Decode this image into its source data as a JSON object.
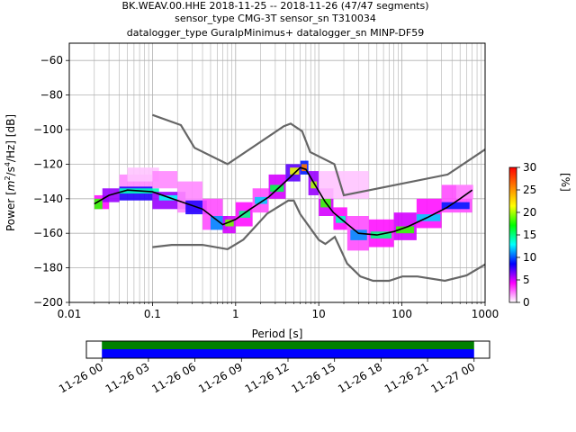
{
  "chart_data": {
    "type": "heatmap",
    "title_lines": [
      "BK.WEAV.00.HHE   2018-11-25 -- 2018-11-26  (47/47 segments)",
      "sensor_type CMG-3T sensor_sn T310034",
      "datalogger_type GuralpMinimus+ datalogger_sn MINP-DF59"
    ],
    "xlabel": "Period [s]",
    "ylabel_parts": {
      "a": "Power [",
      "m": "m",
      "e1": "2",
      "s": "/s",
      "e2": "4",
      "r": "/Hz] [dB]"
    },
    "x_scale": "log",
    "xlim": [
      0.01,
      1000
    ],
    "ylim": [
      -200,
      -50
    ],
    "x_ticks": [
      {
        "value": 0.01,
        "label": "0.01"
      },
      {
        "value": 0.1,
        "label": "0.1"
      },
      {
        "value": 1,
        "label": "1"
      },
      {
        "value": 10,
        "label": "10"
      },
      {
        "value": 100,
        "label": "100"
      },
      {
        "value": 1000,
        "label": "1000"
      }
    ],
    "y_ticks": [
      {
        "value": -60,
        "label": "−60"
      },
      {
        "value": -80,
        "label": "−80"
      },
      {
        "value": -100,
        "label": "−100"
      },
      {
        "value": -120,
        "label": "−120"
      },
      {
        "value": -140,
        "label": "−140"
      },
      {
        "value": -160,
        "label": "−160"
      },
      {
        "value": -180,
        "label": "−180"
      },
      {
        "value": -200,
        "label": "−200"
      }
    ],
    "grid": true,
    "colorbar": {
      "label": "[%]",
      "range": [
        0,
        30
      ],
      "ticks": [
        {
          "value": 0,
          "label": "0"
        },
        {
          "value": 5,
          "label": "5"
        },
        {
          "value": 10,
          "label": "10"
        },
        {
          "value": 15,
          "label": "15"
        },
        {
          "value": 20,
          "label": "20"
        },
        {
          "value": 25,
          "label": "25"
        },
        {
          "value": 30,
          "label": "30"
        }
      ],
      "colors": [
        "#ffffff",
        "#ff00ff",
        "#0000ff",
        "#00ffff",
        "#00ff00",
        "#ffff00",
        "#ff8000",
        "#ff0000"
      ]
    },
    "noise_models": [
      {
        "name": "high",
        "color": "#666666",
        "points": [
          [
            0.1,
            -91.5
          ],
          [
            0.22,
            -97.4
          ],
          [
            0.32,
            -110.5
          ],
          [
            0.8,
            -120
          ],
          [
            3.8,
            -98
          ],
          [
            4.6,
            -96.5
          ],
          [
            6.3,
            -101
          ],
          [
            7.9,
            -113
          ],
          [
            15.4,
            -120
          ],
          [
            20,
            -138
          ],
          [
            354.8,
            -126
          ],
          [
            1000,
            -111.5
          ]
        ]
      },
      {
        "name": "low",
        "color": "#666666",
        "points": [
          [
            0.1,
            -168
          ],
          [
            0.17,
            -166.7
          ],
          [
            0.4,
            -166.7
          ],
          [
            0.8,
            -169.2
          ],
          [
            1.24,
            -163.7
          ],
          [
            2.4,
            -148.6
          ],
          [
            4.3,
            -141.1
          ],
          [
            5,
            -141.1
          ],
          [
            6,
            -149
          ],
          [
            10,
            -163.8
          ],
          [
            12,
            -166.2
          ],
          [
            15.6,
            -162.1
          ],
          [
            21.9,
            -177.5
          ],
          [
            31.6,
            -185
          ],
          [
            45,
            -187.5
          ],
          [
            70,
            -187.5
          ],
          [
            101,
            -185
          ],
          [
            154,
            -185
          ],
          [
            328,
            -187.5
          ],
          [
            600,
            -184.4
          ],
          [
            1000,
            -178
          ]
        ]
      }
    ],
    "mode_curve": {
      "color": "#000000",
      "points": [
        [
          0.02,
          -143
        ],
        [
          0.03,
          -138
        ],
        [
          0.05,
          -135
        ],
        [
          0.1,
          -136
        ],
        [
          0.2,
          -141
        ],
        [
          0.4,
          -146
        ],
        [
          0.7,
          -155
        ],
        [
          1,
          -152
        ],
        [
          1.5,
          -146
        ],
        [
          2.5,
          -139
        ],
        [
          4,
          -130
        ],
        [
          6,
          -122
        ],
        [
          7,
          -123
        ],
        [
          9,
          -132
        ],
        [
          12,
          -142
        ],
        [
          15,
          -148
        ],
        [
          20,
          -153
        ],
        [
          30,
          -160
        ],
        [
          50,
          -161
        ],
        [
          80,
          -159
        ],
        [
          120,
          -156
        ],
        [
          200,
          -151
        ],
        [
          350,
          -145
        ],
        [
          500,
          -140
        ],
        [
          700,
          -135
        ]
      ]
    },
    "ppsd_cells": [
      {
        "x0": 0.02,
        "x1": 0.03,
        "y0": -146,
        "y1": -138,
        "v": 4
      },
      {
        "x0": 0.02,
        "x1": 0.025,
        "y0": -146,
        "y1": -140,
        "v": 18
      },
      {
        "x0": 0.025,
        "x1": 0.04,
        "y0": -142,
        "y1": -134,
        "v": 6
      },
      {
        "x0": 0.04,
        "x1": 0.1,
        "y0": -136,
        "y1": -126,
        "v": 2
      },
      {
        "x0": 0.05,
        "x1": 0.12,
        "y0": -130,
        "y1": -122,
        "v": 1
      },
      {
        "x0": 0.04,
        "x1": 0.1,
        "y0": -141,
        "y1": -133,
        "v": 8
      },
      {
        "x0": 0.04,
        "x1": 0.12,
        "y0": -137,
        "y1": -134,
        "v": 14
      },
      {
        "x0": 0.1,
        "x1": 0.2,
        "y0": -134,
        "y1": -124,
        "v": 2
      },
      {
        "x0": 0.1,
        "x1": 0.25,
        "y0": -146,
        "y1": -136,
        "v": 6
      },
      {
        "x0": 0.12,
        "x1": 0.2,
        "y0": -141,
        "y1": -138,
        "v": 13
      },
      {
        "x0": 0.2,
        "x1": 0.4,
        "y0": -148,
        "y1": -130,
        "v": 2
      },
      {
        "x0": 0.25,
        "x1": 0.45,
        "y0": -149,
        "y1": -141,
        "v": 8
      },
      {
        "x0": 0.4,
        "x1": 0.7,
        "y0": -158,
        "y1": -140,
        "v": 3
      },
      {
        "x0": 0.5,
        "x1": 0.8,
        "y0": -158,
        "y1": -150,
        "v": 11
      },
      {
        "x0": 0.7,
        "x1": 1.0,
        "y0": -160,
        "y1": -150,
        "v": 5
      },
      {
        "x0": 0.75,
        "x1": 0.95,
        "y0": -156,
        "y1": -152,
        "v": 19
      },
      {
        "x0": 1.0,
        "x1": 1.6,
        "y0": -156,
        "y1": -142,
        "v": 4
      },
      {
        "x0": 1.1,
        "x1": 1.5,
        "y0": -151,
        "y1": -147,
        "v": 15
      },
      {
        "x0": 1.6,
        "x1": 2.5,
        "y0": -148,
        "y1": -134,
        "v": 3
      },
      {
        "x0": 1.7,
        "x1": 2.4,
        "y0": -143,
        "y1": -139,
        "v": 12
      },
      {
        "x0": 2.5,
        "x1": 4.0,
        "y0": -140,
        "y1": -126,
        "v": 5
      },
      {
        "x0": 2.6,
        "x1": 3.8,
        "y0": -136,
        "y1": -132,
        "v": 16
      },
      {
        "x0": 4.0,
        "x1": 6.0,
        "y0": -130,
        "y1": -120,
        "v": 7
      },
      {
        "x0": 4.5,
        "x1": 5.8,
        "y0": -126,
        "y1": -122,
        "v": 21
      },
      {
        "x0": 6.0,
        "x1": 7.5,
        "y0": -126,
        "y1": -118,
        "v": 9
      },
      {
        "x0": 6.2,
        "x1": 7.2,
        "y0": -124,
        "y1": -120,
        "v": 26
      },
      {
        "x0": 7.5,
        "x1": 10,
        "y0": -138,
        "y1": -124,
        "v": 6
      },
      {
        "x0": 8,
        "x1": 9.5,
        "y0": -134,
        "y1": -130,
        "v": 20
      },
      {
        "x0": 10,
        "x1": 15,
        "y0": -150,
        "y1": -134,
        "v": 5
      },
      {
        "x0": 10.5,
        "x1": 14,
        "y0": -145,
        "y1": -140,
        "v": 18
      },
      {
        "x0": 10,
        "x1": 40,
        "y0": -140,
        "y1": -124,
        "v": 1
      },
      {
        "x0": 15,
        "x1": 22,
        "y0": -158,
        "y1": -145,
        "v": 4
      },
      {
        "x0": 16,
        "x1": 21,
        "y0": -154,
        "y1": -150,
        "v": 14
      },
      {
        "x0": 22,
        "x1": 40,
        "y0": -170,
        "y1": -150,
        "v": 3
      },
      {
        "x0": 24,
        "x1": 38,
        "y0": -164,
        "y1": -158,
        "v": 11
      },
      {
        "x0": 40,
        "x1": 80,
        "y0": -168,
        "y1": -152,
        "v": 4
      },
      {
        "x0": 42,
        "x1": 75,
        "y0": -163,
        "y1": -159,
        "v": 15
      },
      {
        "x0": 80,
        "x1": 150,
        "y0": -164,
        "y1": -148,
        "v": 5
      },
      {
        "x0": 85,
        "x1": 140,
        "y0": -160,
        "y1": -156,
        "v": 18
      },
      {
        "x0": 150,
        "x1": 300,
        "y0": -157,
        "y1": -140,
        "v": 4
      },
      {
        "x0": 150,
        "x1": 290,
        "y0": -153,
        "y1": -149,
        "v": 12
      },
      {
        "x0": 300,
        "x1": 700,
        "y0": -148,
        "y1": -132,
        "v": 3
      },
      {
        "x0": 300,
        "x1": 650,
        "y0": -146,
        "y1": -142,
        "v": 9
      },
      {
        "x0": 450,
        "x1": 720,
        "y0": -140,
        "y1": -132,
        "v": 2
      }
    ],
    "timeline": {
      "tick_labels": [
        "11-26 00",
        "11-26 03",
        "11-26 06",
        "11-26 09",
        "11-26 12",
        "11-26 15",
        "11-26 18",
        "11-26 21",
        "11-27 00"
      ],
      "range_hours": [
        -1,
        25
      ],
      "bars": [
        {
          "name": "green",
          "color": "#008000",
          "start_hours": 0,
          "end_hours": 24
        },
        {
          "name": "blue",
          "color": "#0000ff",
          "start_hours": 0,
          "end_hours": 24
        }
      ]
    }
  }
}
